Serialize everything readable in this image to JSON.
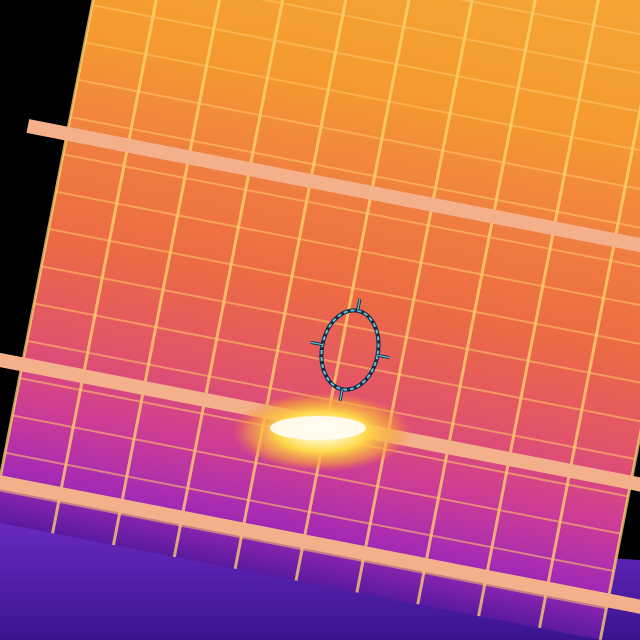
{
  "image": {
    "kind": "thermal-camera-frame",
    "subject": "solar-panel-array",
    "palette": "ironbow",
    "hotspot_present": true,
    "colors": {
      "background": "#000000",
      "palette_stops": [
        "#2a0a6e",
        "#7a1fb0",
        "#c83aa8",
        "#e8506a",
        "#f07a3c",
        "#f5a230",
        "#ffd84a",
        "#fff6c8"
      ],
      "panel_frame": "#f4b08a",
      "reticle": "#58c8e0",
      "reticle_shadow": "#1a2840"
    }
  }
}
